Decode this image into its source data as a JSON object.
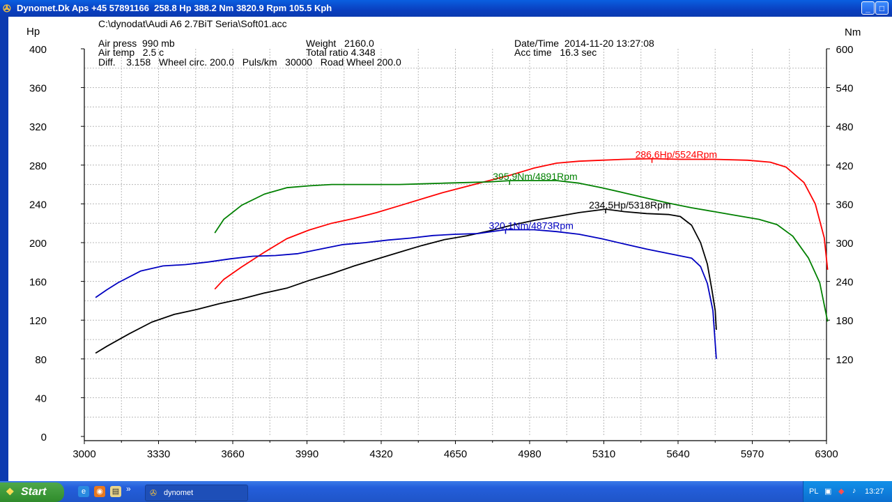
{
  "window": {
    "title": "Dynomet.Dk Aps +45 57891166  258.8 Hp 388.2 Nm 3820.9 Rpm 105.5 Kph",
    "buttons": [
      "minimize",
      "maximize",
      "close"
    ]
  },
  "header": {
    "file_path": "C:\\dynodat\\Audi A6 2.7BiT Seria\\Soft01.acc",
    "air_press": "Air press  990 mb",
    "air_temp": "Air temp   2.5 c",
    "diff_line": "Diff.    3.158   Wheel circ. 200.0   Puls/km   30000   Road Wheel 200.0",
    "weight": "Weight   2160.0",
    "total_ratio": "Total ratio 4.348",
    "datetime": "Date/Time  2014-11-20 13:27:08",
    "acc_time": "Acc time   16.3 sec"
  },
  "chart_data": {
    "type": "line",
    "x_unit": "Rpm",
    "xlim": [
      3000,
      6300
    ],
    "xticks": [
      3000,
      3330,
      3660,
      3990,
      4320,
      4650,
      4980,
      5310,
      5640,
      5970,
      6300
    ],
    "y_left_label": "Hp",
    "y_left_lim": [
      0,
      400
    ],
    "y_left_ticks": [
      0,
      40,
      80,
      120,
      160,
      200,
      240,
      280,
      320,
      360,
      400
    ],
    "y_right_label": "Nm",
    "y_right_lim": [
      0,
      600
    ],
    "y_right_ticks": [
      120,
      180,
      240,
      300,
      360,
      420,
      480,
      540,
      600
    ],
    "grid": true,
    "series": [
      {
        "color": "#ff0000",
        "axis": "left",
        "x": [
          3580,
          3620,
          3700,
          3800,
          3900,
          4000,
          4100,
          4200,
          4300,
          4400,
          4500,
          4600,
          4700,
          4800,
          4900,
          5000,
          5100,
          5200,
          5300,
          5400,
          5524,
          5650,
          5800,
          5950,
          6050,
          6120,
          6200,
          6250,
          6290,
          6305
        ],
        "y": [
          152,
          162,
          175,
          190,
          204,
          213,
          220,
          225,
          231,
          238,
          245,
          252,
          258,
          264,
          270,
          277,
          282,
          284,
          285,
          286,
          286.6,
          286,
          286,
          285,
          283,
          278,
          262,
          240,
          205,
          172
        ]
      },
      {
        "color": "#008000",
        "axis": "right",
        "x": [
          3580,
          3620,
          3700,
          3800,
          3900,
          4000,
          4100,
          4200,
          4300,
          4400,
          4500,
          4600,
          4700,
          4800,
          4891,
          5000,
          5100,
          5200,
          5300,
          5400,
          5500,
          5600,
          5700,
          5800,
          5900,
          6000,
          6080,
          6150,
          6220,
          6270,
          6305
        ],
        "y": [
          315,
          336,
          358,
          375,
          385,
          388,
          390,
          390,
          390,
          390,
          391,
          392,
          393,
          394,
          395.9,
          396,
          396,
          392,
          385,
          377,
          369,
          361,
          354,
          348,
          342,
          336,
          328,
          310,
          276,
          238,
          178
        ]
      },
      {
        "color": "#000000",
        "axis": "left",
        "x": [
          3050,
          3100,
          3200,
          3300,
          3400,
          3500,
          3600,
          3700,
          3800,
          3900,
          4000,
          4100,
          4200,
          4300,
          4400,
          4500,
          4600,
          4700,
          4800,
          4900,
          5000,
          5100,
          5200,
          5318,
          5400,
          5500,
          5600,
          5650,
          5700,
          5740,
          5770,
          5790,
          5805,
          5810
        ],
        "y": [
          86,
          93,
          106,
          118,
          126,
          131,
          137,
          142,
          148,
          153,
          161,
          168,
          176,
          183,
          190,
          197,
          203,
          207,
          212,
          218,
          223,
          227,
          231,
          234.5,
          232,
          230,
          229,
          227,
          218,
          200,
          178,
          152,
          130,
          110
        ]
      },
      {
        "color": "#0000c0",
        "axis": "right",
        "x": [
          3050,
          3100,
          3150,
          3250,
          3350,
          3450,
          3550,
          3650,
          3750,
          3850,
          3950,
          4050,
          4150,
          4250,
          4350,
          4450,
          4550,
          4650,
          4750,
          4873,
          5000,
          5100,
          5200,
          5300,
          5400,
          5500,
          5600,
          5700,
          5740,
          5770,
          5795,
          5810
        ],
        "y": [
          215,
          227,
          238,
          256,
          264,
          266,
          270,
          275,
          279,
          280,
          283,
          290,
          297,
          300,
          304,
          307,
          311,
          313,
          314,
          320.1,
          320,
          317,
          313,
          306,
          298,
          290,
          283,
          276,
          263,
          237,
          195,
          120
        ]
      }
    ],
    "annotations": [
      {
        "text": "286.6Hp/5524Rpm",
        "color": "#ff0000",
        "axis": "left",
        "x": 5524,
        "y": 286.6
      },
      {
        "text": "395.9Nm/4891Rpm",
        "color": "#008000",
        "axis": "right",
        "x": 4891,
        "y": 395.9
      },
      {
        "text": "234.5Hp/5318Rpm",
        "color": "#000000",
        "axis": "left",
        "x": 5318,
        "y": 234.5
      },
      {
        "text": "320.1Nm/4873Rpm",
        "color": "#0000c0",
        "axis": "right",
        "x": 4873,
        "y": 320.1
      }
    ]
  },
  "taskbar": {
    "start_label": "Start",
    "quick_launch": [
      "ie-icon",
      "firefox-icon",
      "explorer-icon"
    ],
    "more": "»",
    "task_label": "dynomet",
    "lang": "PL",
    "clock": "13:27"
  }
}
